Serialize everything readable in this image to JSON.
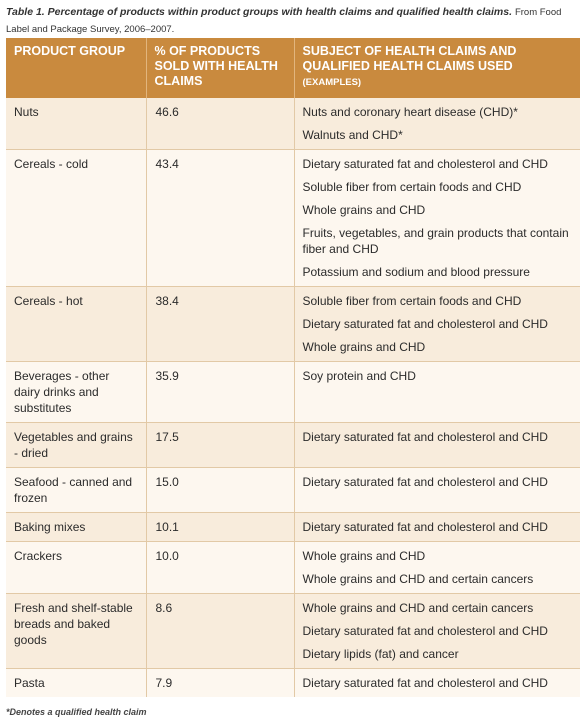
{
  "caption": {
    "title": "Table 1. Percentage of products within product groups with health claims and qualified health claims.",
    "source": "From Food Label and Package Survey, 2006–2007."
  },
  "headers": {
    "product_group": "PRODUCT GROUP",
    "percent_sold": "% OF PRODUCTS SOLD WITH HEALTH CLAIMS",
    "subject": "SUBJECT OF HEALTH CLAIMS AND QUALIFIED HEALTH CLAIMS USED",
    "subject_note": "(EXAMPLES)"
  },
  "rows": [
    {
      "group": "Nuts",
      "percent": "46.6",
      "claims": [
        "Nuts and coronary heart disease (CHD)*",
        "Walnuts and CHD*"
      ]
    },
    {
      "group": "Cereals - cold",
      "percent": "43.4",
      "claims": [
        "Dietary saturated fat and cholesterol and CHD",
        "Soluble fiber from certain foods and CHD",
        "Whole grains and CHD",
        "Fruits, vegetables, and grain products that contain fiber and CHD",
        "Potassium and sodium and blood pressure"
      ]
    },
    {
      "group": "Cereals - hot",
      "percent": "38.4",
      "claims": [
        "Soluble fiber from certain foods and CHD",
        "Dietary saturated fat and cholesterol and CHD",
        "Whole grains and CHD"
      ]
    },
    {
      "group": "Beverages - other dairy drinks and substitutes",
      "percent": "35.9",
      "claims": [
        "Soy protein and CHD"
      ]
    },
    {
      "group": "Vegetables and grains - dried",
      "percent": "17.5",
      "claims": [
        "Dietary saturated fat and cholesterol and CHD"
      ]
    },
    {
      "group": "Seafood - canned and frozen",
      "percent": "15.0",
      "claims": [
        "Dietary saturated fat and cholesterol and CHD"
      ]
    },
    {
      "group": "Baking mixes",
      "percent": "10.1",
      "claims": [
        "Dietary saturated fat and cholesterol and CHD"
      ]
    },
    {
      "group": "Crackers",
      "percent": "10.0",
      "claims": [
        "Whole grains and CHD",
        "Whole grains and CHD and certain cancers"
      ]
    },
    {
      "group": "Fresh and shelf-stable breads and baked goods",
      "percent": "8.6",
      "claims": [
        "Whole grains and CHD and certain cancers",
        "Dietary saturated fat and cholesterol and CHD",
        "Dietary lipids (fat) and cancer"
      ]
    },
    {
      "group": "Pasta",
      "percent": "7.9",
      "claims": [
        "Dietary saturated fat and cholesterol and CHD"
      ]
    }
  ],
  "footnote": "*Denotes a qualified health claim"
}
